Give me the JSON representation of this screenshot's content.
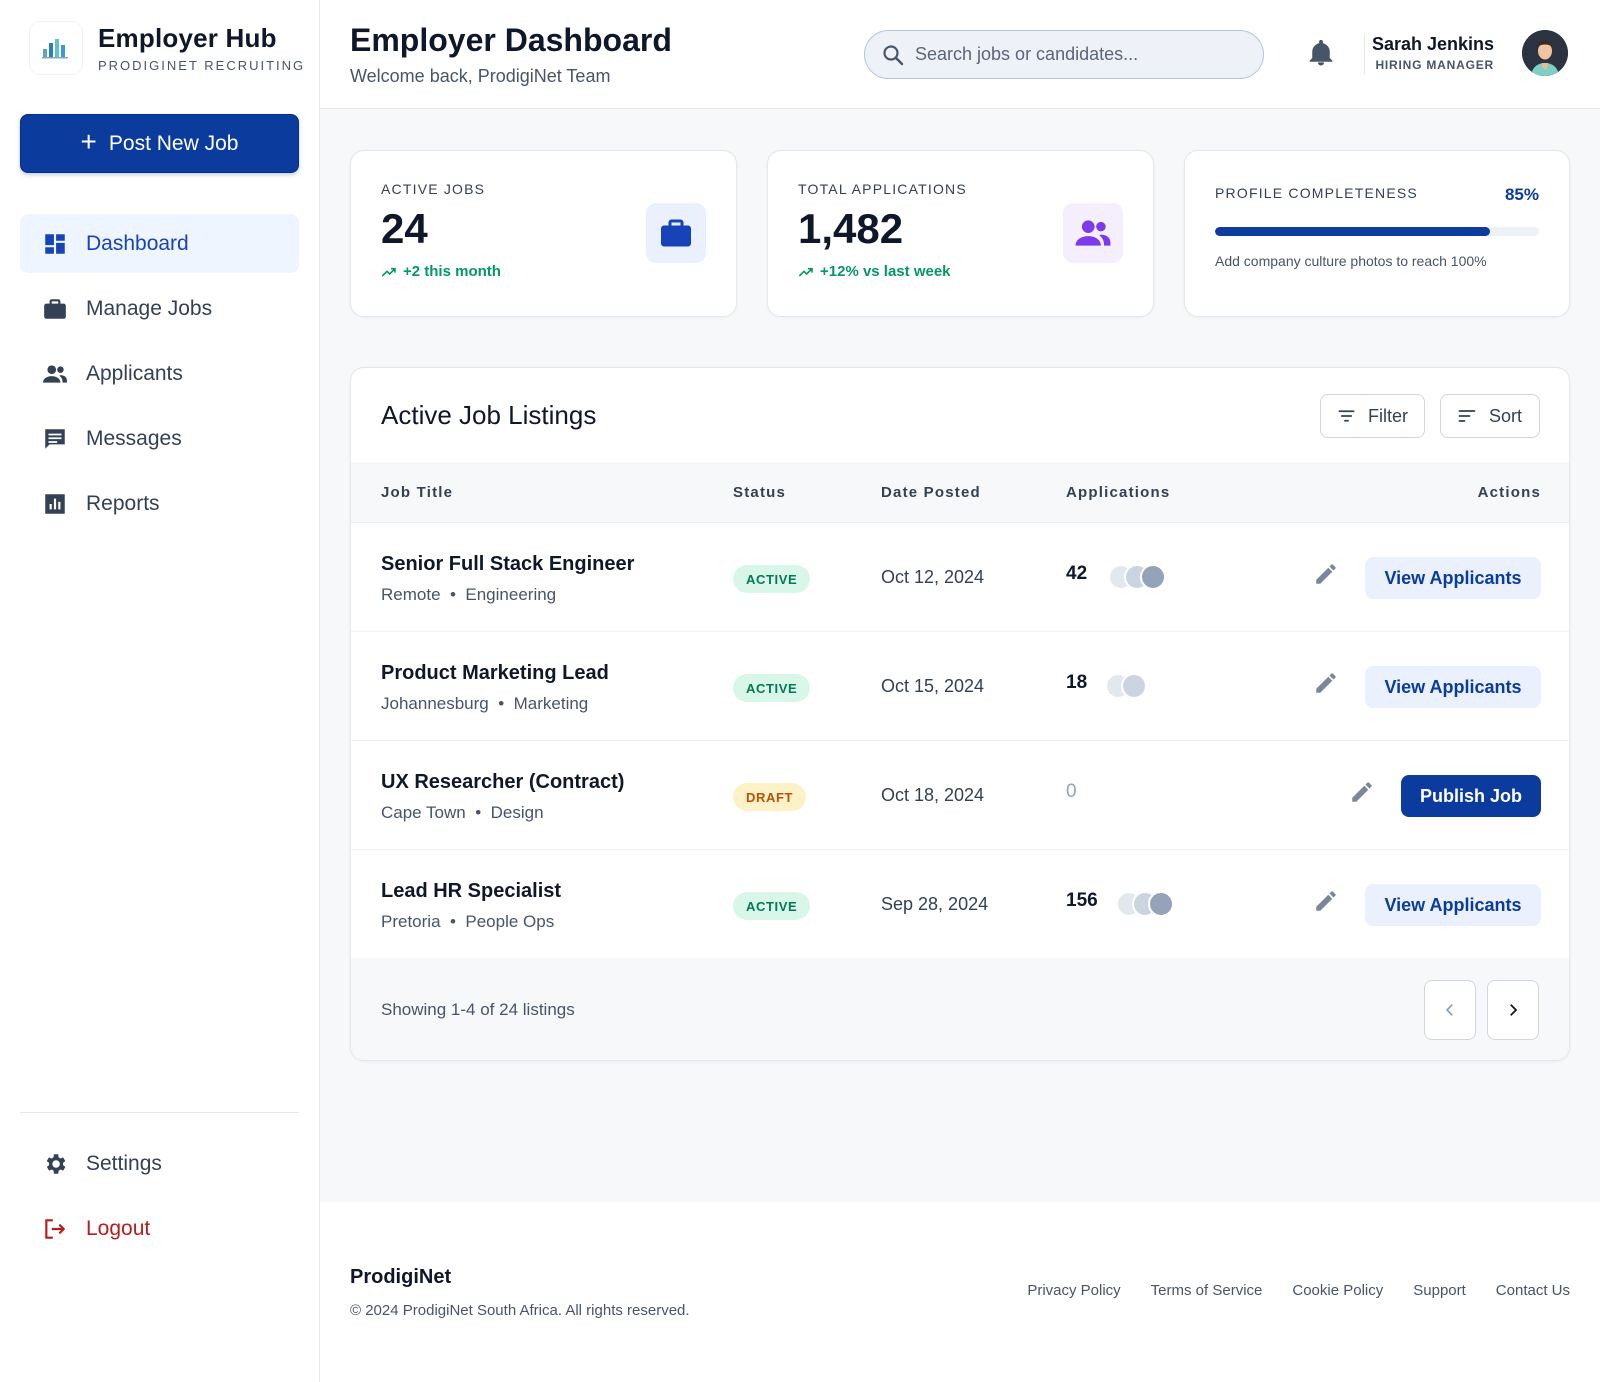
{
  "brand": {
    "name": "Employer Hub",
    "sub": "PRODIGINET RECRUITING"
  },
  "sidebar": {
    "post_label": "Post New Job",
    "items": [
      {
        "label": "Dashboard",
        "icon": "dashboard-icon",
        "active": true
      },
      {
        "label": "Manage Jobs",
        "icon": "briefcase-icon"
      },
      {
        "label": "Applicants",
        "icon": "people-icon"
      },
      {
        "label": "Messages",
        "icon": "message-icon"
      },
      {
        "label": "Reports",
        "icon": "chart-icon"
      }
    ],
    "bottom": [
      {
        "label": "Settings",
        "icon": "gear-icon"
      },
      {
        "label": "Logout",
        "icon": "logout-icon"
      }
    ]
  },
  "header": {
    "title": "Employer Dashboard",
    "subtitle": "Welcome back, ProdigiNet Team",
    "search_placeholder": "Search jobs or candidates...",
    "user_name": "Sarah Jenkins",
    "user_role": "HIRING MANAGER"
  },
  "stats": {
    "active_jobs": {
      "label": "ACTIVE JOBS",
      "value": "24",
      "trend": "+2 this month"
    },
    "total_applications": {
      "label": "TOTAL APPLICATIONS",
      "value": "1,482",
      "trend": "+12% vs last week"
    },
    "profile": {
      "label": "PROFILE COMPLETENESS",
      "percent_label": "85%",
      "percent": 85,
      "note": "Add company culture photos to reach 100%"
    }
  },
  "listings": {
    "title": "Active Job Listings",
    "filter_label": "Filter",
    "sort_label": "Sort",
    "columns": [
      "Job Title",
      "Status",
      "Date Posted",
      "Applications",
      "Actions"
    ],
    "rows": [
      {
        "title": "Senior Full Stack Engineer",
        "location": "Remote",
        "dept": "Engineering",
        "status": "ACTIVE",
        "date": "Oct 12, 2024",
        "applications": "42",
        "action": "View Applicants"
      },
      {
        "title": "Product Marketing Lead",
        "location": "Johannesburg",
        "dept": "Marketing",
        "status": "ACTIVE",
        "date": "Oct 15, 2024",
        "applications": "18",
        "action": "View Applicants"
      },
      {
        "title": "UX Researcher (Contract)",
        "location": "Cape Town",
        "dept": "Design",
        "status": "DRAFT",
        "date": "Oct 18, 2024",
        "applications": "0",
        "action": "Publish Job"
      },
      {
        "title": "Lead HR Specialist",
        "location": "Pretoria",
        "dept": "People Ops",
        "status": "ACTIVE",
        "date": "Sep 28, 2024",
        "applications": "156",
        "action": "View Applicants"
      }
    ],
    "showing": "Showing 1-4 of 24 listings"
  },
  "footer": {
    "brand": "ProdigiNet",
    "copyright": "© 2024 ProdigiNet South Africa. All rights reserved.",
    "links": [
      "Privacy Policy",
      "Terms of Service",
      "Cookie Policy",
      "Support",
      "Contact Us"
    ]
  },
  "colors": {
    "primary": "#0b3b9c",
    "active_nav": "#1743b8",
    "success": "#059669",
    "danger": "#b91c1c",
    "purple": "#7c3aed"
  }
}
